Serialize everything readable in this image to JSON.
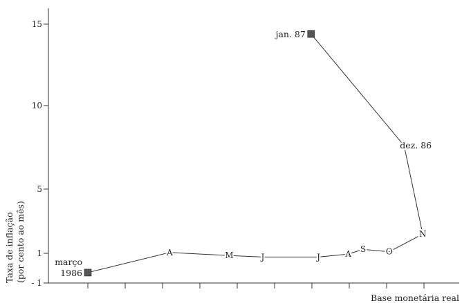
{
  "chart_data": {
    "type": "scatter",
    "connected": true,
    "title": "",
    "xlabel": "Base monetária real",
    "ylabel_lines": [
      "Taxa de inflação",
      "(por cento ao mês)"
    ],
    "y_ticks": [
      "15",
      "10",
      "5",
      "1",
      "- 1"
    ],
    "y_tick_values": [
      15,
      10,
      5,
      1,
      -1
    ],
    "ylim": [
      -1,
      16
    ],
    "x_axis_numeric_labels": false,
    "series": [
      {
        "points": [
          {
            "label": "março 1986",
            "x": 1.0,
            "y": -0.3
          },
          {
            "label": "A",
            "x": 3.2,
            "y": 1.05
          },
          {
            "label": "M",
            "x": 4.8,
            "y": 0.85
          },
          {
            "label": "J",
            "x": 5.7,
            "y": 0.75
          },
          {
            "label": "J",
            "x": 7.2,
            "y": 0.75
          },
          {
            "label": "A",
            "x": 8.0,
            "y": 0.95
          },
          {
            "label": "S",
            "x": 8.4,
            "y": 1.25
          },
          {
            "label": "O",
            "x": 9.1,
            "y": 1.1
          },
          {
            "label": "N",
            "x": 10.0,
            "y": 2.2
          },
          {
            "label": "dez. 86",
            "x": 9.5,
            "y": 7.6
          },
          {
            "label": "jan. 87",
            "x": 7.0,
            "y": 14.4
          }
        ]
      }
    ],
    "point_labels": {
      "start": [
        "março",
        "1986"
      ],
      "months": [
        "A",
        "M",
        "J",
        "J",
        "A",
        "S",
        "O",
        "N"
      ],
      "dec": "dez. 86",
      "jan": "jan. 87"
    }
  }
}
